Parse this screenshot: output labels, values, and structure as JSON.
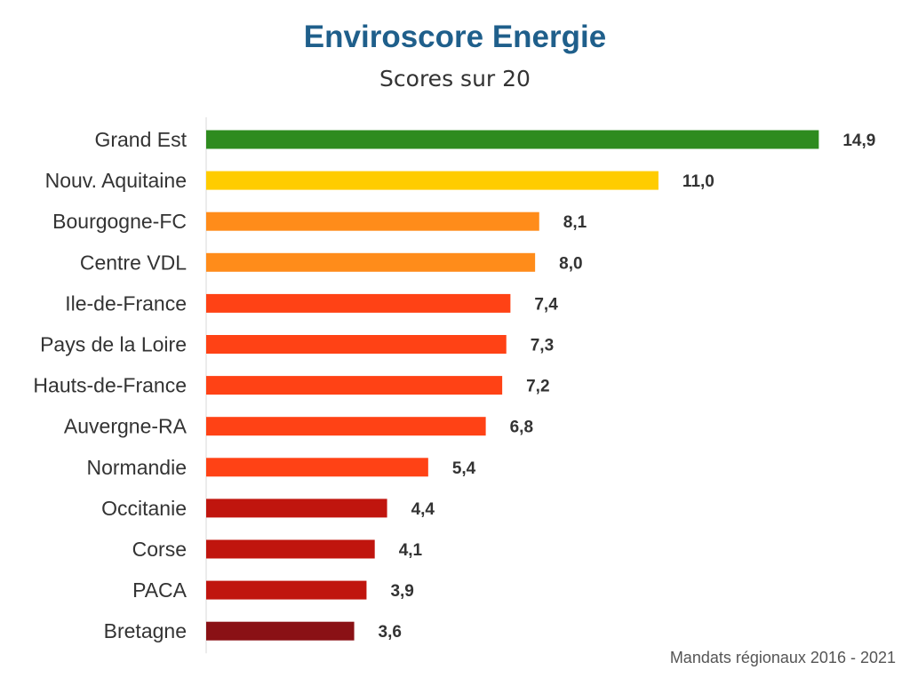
{
  "chart_data": {
    "type": "bar",
    "orientation": "horizontal",
    "title": "Enviroscore Energie",
    "subtitle": "Scores sur 20",
    "xlim": [
      0,
      15
    ],
    "grid": false,
    "categories": [
      "Grand Est",
      "Nouv. Aquitaine",
      "Bourgogne-FC",
      "Centre VDL",
      "Ile-de-France",
      "Pays de la Loire",
      "Hauts-de-France",
      "Auvergne-RA",
      "Normandie",
      "Occitanie",
      "Corse",
      "PACA",
      "Bretagne"
    ],
    "values": [
      14.9,
      11.0,
      8.1,
      8.0,
      7.4,
      7.3,
      7.2,
      6.8,
      5.4,
      4.4,
      4.1,
      3.9,
      3.6
    ],
    "value_labels": [
      "14,9",
      "11,0",
      "8,1",
      "8,0",
      "7,4",
      "7,3",
      "7,2",
      "6,8",
      "5,4",
      "4,4",
      "4,1",
      "3,9",
      "3,6"
    ],
    "bar_colors": [
      "#2e8b1f",
      "#ffcc00",
      "#ff8c1a",
      "#ff8c1a",
      "#ff4215",
      "#ff4215",
      "#ff4215",
      "#ff4215",
      "#ff4215",
      "#c0150e",
      "#c0150e",
      "#c0150e",
      "#8a1115"
    ]
  },
  "footnote": "Mandats régionaux 2016 - 2021"
}
